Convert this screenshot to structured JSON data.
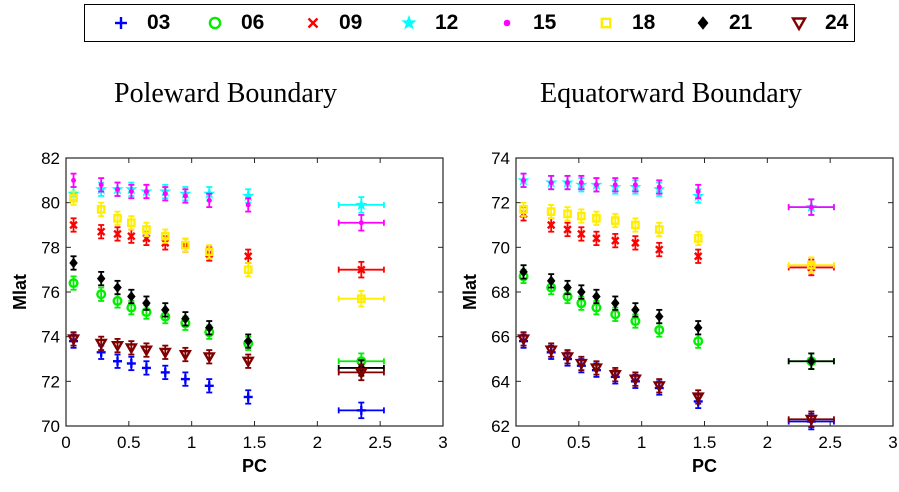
{
  "legend": [
    {
      "label": "03",
      "color": "#0000ff",
      "marker": "plus"
    },
    {
      "label": "06",
      "color": "#00ee00",
      "marker": "circle"
    },
    {
      "label": "09",
      "color": "#ff0000",
      "marker": "x"
    },
    {
      "label": "12",
      "color": "#00ffff",
      "marker": "star"
    },
    {
      "label": "15",
      "color": "#ff00ff",
      "marker": "dot"
    },
    {
      "label": "18",
      "color": "#ffee00",
      "marker": "square"
    },
    {
      "label": "21",
      "color": "#000000",
      "marker": "diamond"
    },
    {
      "label": "24",
      "color": "#800000",
      "marker": "triangle-down"
    }
  ],
  "chart_data": [
    {
      "type": "scatter",
      "title": "Poleward Boundary",
      "xlabel": "PC",
      "ylabel": "Mlat",
      "xlim": [
        0,
        3
      ],
      "ylim": [
        70,
        82
      ],
      "xticks": [
        0,
        0.5,
        1,
        1.5,
        2,
        2.5,
        3
      ],
      "yticks": [
        70,
        72,
        74,
        76,
        78,
        80,
        82
      ],
      "x": [
        0.06,
        0.28,
        0.41,
        0.52,
        0.64,
        0.79,
        0.95,
        1.14,
        1.45,
        2.35
      ],
      "series": [
        {
          "name": "03",
          "y": [
            73.8,
            73.3,
            72.9,
            72.8,
            72.6,
            72.4,
            72.1,
            71.8,
            71.3,
            70.7
          ]
        },
        {
          "name": "06",
          "y": [
            76.4,
            75.9,
            75.6,
            75.3,
            75.1,
            74.9,
            74.6,
            74.2,
            73.7,
            72.9
          ]
        },
        {
          "name": "09",
          "y": [
            79.0,
            78.7,
            78.6,
            78.5,
            78.4,
            78.2,
            78.1,
            77.7,
            77.6,
            77.0
          ]
        },
        {
          "name": "12",
          "y": [
            80.4,
            80.6,
            80.6,
            80.6,
            80.5,
            80.5,
            80.4,
            80.4,
            80.3,
            79.9
          ]
        },
        {
          "name": "15",
          "y": [
            81.0,
            80.8,
            80.6,
            80.5,
            80.5,
            80.4,
            80.3,
            80.1,
            79.9,
            79.1
          ]
        },
        {
          "name": "18",
          "y": [
            80.2,
            79.7,
            79.3,
            79.1,
            78.8,
            78.5,
            78.1,
            77.8,
            77.0,
            75.7
          ]
        },
        {
          "name": "21",
          "y": [
            77.3,
            76.6,
            76.2,
            75.8,
            75.5,
            75.2,
            74.8,
            74.4,
            73.8,
            72.6
          ]
        },
        {
          "name": "24",
          "y": [
            73.9,
            73.7,
            73.6,
            73.5,
            73.4,
            73.3,
            73.2,
            73.1,
            72.9,
            72.4
          ]
        }
      ]
    },
    {
      "type": "scatter",
      "title": "Equatorward Boundary",
      "xlabel": "PC",
      "ylabel": "Mlat",
      "xlim": [
        0,
        3
      ],
      "ylim": [
        62,
        74
      ],
      "xticks": [
        0,
        0.5,
        1,
        1.5,
        2,
        2.5,
        3
      ],
      "yticks": [
        62,
        64,
        66,
        68,
        70,
        72,
        74
      ],
      "x": [
        0.06,
        0.28,
        0.41,
        0.52,
        0.64,
        0.79,
        0.95,
        1.14,
        1.45,
        2.35
      ],
      "series": [
        {
          "name": "03",
          "y": [
            65.8,
            65.3,
            65.0,
            64.7,
            64.5,
            64.2,
            64.0,
            63.7,
            63.1,
            62.2
          ]
        },
        {
          "name": "06",
          "y": [
            68.7,
            68.2,
            67.8,
            67.5,
            67.3,
            67.0,
            66.7,
            66.3,
            65.8,
            64.9
          ]
        },
        {
          "name": "09",
          "y": [
            71.5,
            71.0,
            70.8,
            70.6,
            70.4,
            70.3,
            70.2,
            69.9,
            69.6,
            69.1
          ]
        },
        {
          "name": "12",
          "y": [
            73.0,
            72.9,
            72.9,
            72.8,
            72.8,
            72.7,
            72.7,
            72.6,
            72.3,
            71.8
          ]
        },
        {
          "name": "15",
          "y": [
            73.0,
            72.9,
            72.9,
            72.9,
            72.8,
            72.8,
            72.8,
            72.7,
            72.5,
            71.8
          ]
        },
        {
          "name": "18",
          "y": [
            71.7,
            71.6,
            71.5,
            71.4,
            71.3,
            71.2,
            71.0,
            70.8,
            70.4,
            69.2
          ]
        },
        {
          "name": "21",
          "y": [
            68.9,
            68.5,
            68.2,
            68.0,
            67.8,
            67.5,
            67.2,
            66.9,
            66.4,
            64.9
          ]
        },
        {
          "name": "24",
          "y": [
            65.9,
            65.4,
            65.1,
            64.8,
            64.6,
            64.3,
            64.1,
            63.8,
            63.3,
            62.3
          ]
        }
      ]
    }
  ]
}
